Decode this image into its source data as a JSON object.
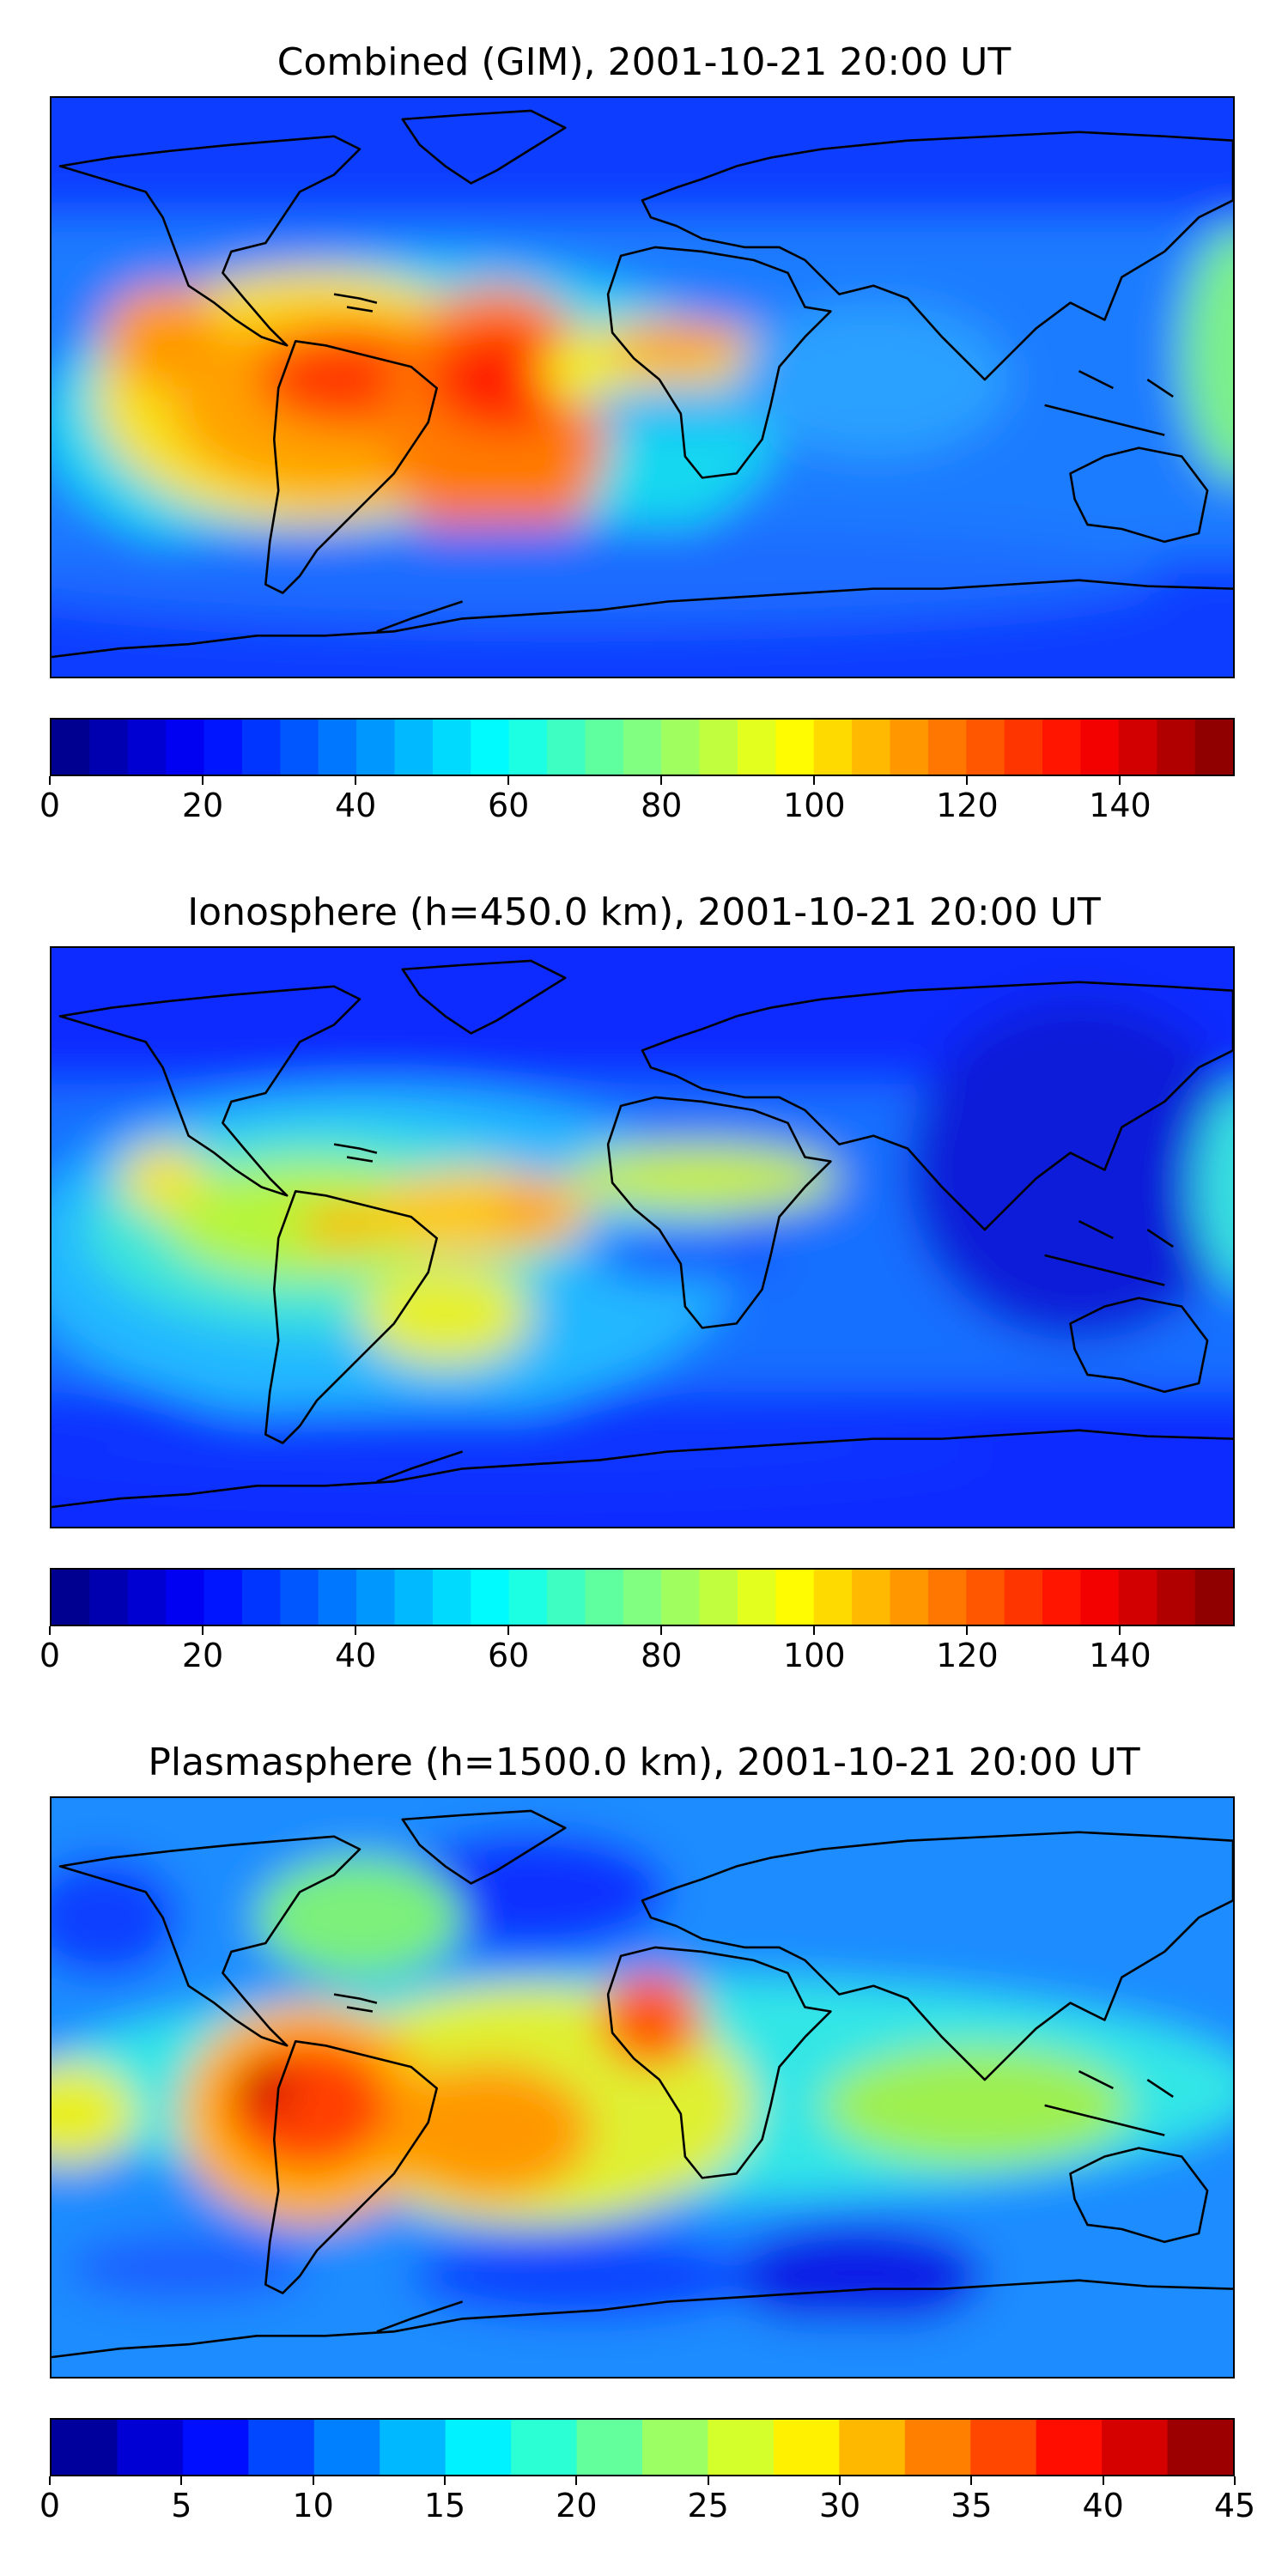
{
  "panels": [
    {
      "title": "Combined (GIM), 2001-10-21 20:00 UT",
      "colorbar": {
        "vmin": 0,
        "vmax": 155,
        "levels": 31,
        "ticks": [
          "0",
          "20",
          "40",
          "60",
          "80",
          "100",
          "120",
          "140"
        ]
      }
    },
    {
      "title": "Ionosphere  (h=450.0 km), 2001-10-21 20:00 UT",
      "colorbar": {
        "vmin": 0,
        "vmax": 155,
        "levels": 31,
        "ticks": [
          "0",
          "20",
          "40",
          "60",
          "80",
          "100",
          "120",
          "140"
        ]
      }
    },
    {
      "title": "Plasmasphere (h=1500.0 km), 2001-10-21 20:00 UT",
      "colorbar": {
        "vmin": 0,
        "vmax": 45,
        "levels": 18,
        "ticks": [
          "0",
          "5",
          "10",
          "15",
          "20",
          "25",
          "30",
          "35",
          "40",
          "45"
        ]
      }
    }
  ],
  "chart_data": [
    {
      "type": "heatmap",
      "title": "Combined (GIM), 2001-10-21 20:00 UT",
      "colormap": "jet",
      "value_range": [
        0,
        155
      ],
      "features": [
        {
          "region": "background",
          "value": 30
        },
        {
          "region": "northern-americas-band",
          "value": 60
        },
        {
          "region": "eastern-pacific-maximum",
          "value": 125
        },
        {
          "region": "south-america-maximum",
          "value": 130
        },
        {
          "region": "west-africa-maximum",
          "value": 110
        },
        {
          "region": "equatorial-atlantic-trough",
          "value": 65
        },
        {
          "region": "west-pacific-edge",
          "value": 75
        },
        {
          "region": "southern-band",
          "value": 45
        }
      ]
    },
    {
      "type": "heatmap",
      "title": "Ionosphere  (h=450.0 km), 2001-10-21 20:00 UT",
      "colormap": "jet",
      "value_range": [
        0,
        155
      ],
      "features": [
        {
          "region": "background",
          "value": 20
        },
        {
          "region": "eastern-pacific-crest",
          "value": 95
        },
        {
          "region": "south-america-crest",
          "value": 105
        },
        {
          "region": "west-africa-crest",
          "value": 90
        },
        {
          "region": "equatorial-atlantic-trough",
          "value": 30
        },
        {
          "region": "asia-pacific-minimum",
          "value": 8
        },
        {
          "region": "west-pacific-edge",
          "value": 60
        }
      ]
    },
    {
      "type": "heatmap",
      "title": "Plasmasphere (h=1500.0 km), 2001-10-21 20:00 UT",
      "colormap": "jet",
      "value_range": [
        0,
        45
      ],
      "features": [
        {
          "region": "background",
          "value": 16
        },
        {
          "region": "eastern-pacific-maximum",
          "value": 40
        },
        {
          "region": "south-america-maximum",
          "value": 35
        },
        {
          "region": "west-africa-maximum",
          "value": 36
        },
        {
          "region": "equatorial-band",
          "value": 26
        },
        {
          "region": "southern-indian-ocean-minimum",
          "value": 6
        },
        {
          "region": "north-atlantic-minimum",
          "value": 9
        }
      ]
    }
  ]
}
